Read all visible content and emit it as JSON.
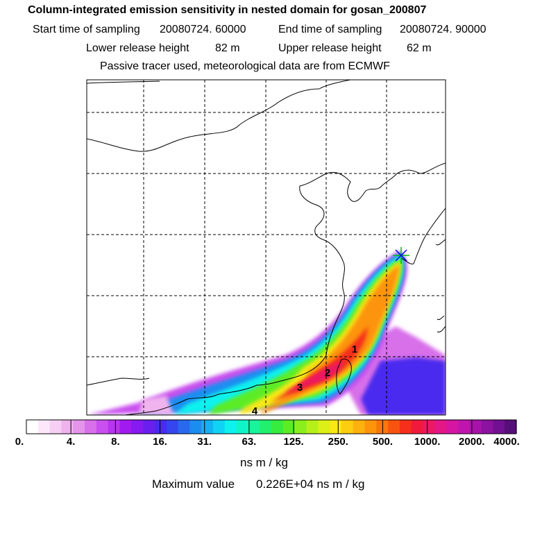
{
  "header": {
    "title": "Column-integrated emission sensitivity in nested domain for gosan_200807",
    "start_label": "Start time of sampling",
    "start_value": "20080724. 60000",
    "end_label": "End time of sampling",
    "end_value": "20080724. 90000",
    "lower_label": "Lower release height",
    "lower_value": "82 m",
    "upper_label": "Upper release height",
    "upper_value": "62 m",
    "note": "Passive tracer used, meteorological data are from ECMWF"
  },
  "map": {
    "release_site_icon": "star-marker",
    "track_labels": [
      "1",
      "2",
      "3",
      "4"
    ]
  },
  "colorbar": {
    "tick_labels": [
      "0.",
      "4.",
      "8.",
      "16.",
      "31.",
      "63.",
      "125.",
      "250.",
      "500.",
      "1000.",
      "2000.",
      "4000."
    ],
    "colors": [
      "#ffffff",
      "#fde8fb",
      "#f7cff4",
      "#efb3ee",
      "#e495ea",
      "#d870ea",
      "#c950ee",
      "#b734f0",
      "#a11bf0",
      "#861af0",
      "#6a1fef",
      "#4a2aee",
      "#3546ee",
      "#2869ee",
      "#1c8df0",
      "#15b0f2",
      "#10d3f4",
      "#0ef2ee",
      "#10f5c8",
      "#18f39c",
      "#22ef6e",
      "#35ec3f",
      "#5cec25",
      "#8aee1d",
      "#b5f01a",
      "#dcef17",
      "#f8e814",
      "#fccd10",
      "#fdb10e",
      "#fd940c",
      "#fc760c",
      "#f9540f",
      "#f52f1a",
      "#f11a3c",
      "#ec1863",
      "#e41787",
      "#d516a2",
      "#c015ad",
      "#a713a8",
      "#8c12a0",
      "#711091",
      "#560e78"
    ],
    "unit": "ns m / kg",
    "max_label": "Maximum value",
    "max_value": "0.226E+04 ns m / kg"
  }
}
